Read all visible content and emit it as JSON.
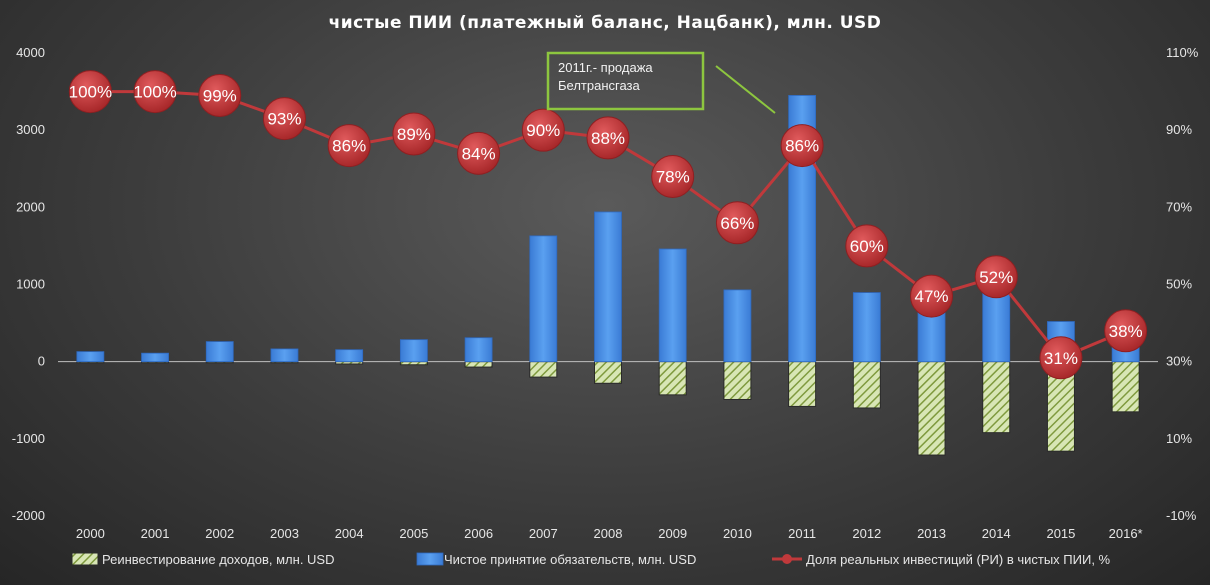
{
  "chart_data": {
    "type": "bar",
    "title": "чистые ПИИ (платежный баланс, Нацбанк), млн. USD",
    "categories": [
      "2000",
      "2001",
      "2002",
      "2003",
      "2004",
      "2005",
      "2006",
      "2007",
      "2008",
      "2009",
      "2010",
      "2011",
      "2012",
      "2013",
      "2014",
      "2015",
      "2016*"
    ],
    "ylim": [
      -2000,
      4000
    ],
    "yticks": [
      4000,
      3000,
      2000,
      1000,
      0,
      -1000,
      -2000
    ],
    "ylim_right": [
      -10,
      110
    ],
    "yticks_right": [
      "110%",
      "90%",
      "70%",
      "50%",
      "30%",
      "10%",
      "-10%"
    ],
    "yticks_right_values": [
      110,
      90,
      70,
      50,
      30,
      10,
      -10
    ],
    "series": [
      {
        "name": "Реинвестирование доходов, млн. USD",
        "kind": "bar-hatched",
        "color": "#9bbb59",
        "values": [
          -15,
          -15,
          -15,
          -15,
          -30,
          -40,
          -70,
          -200,
          -280,
          -430,
          -490,
          -580,
          -600,
          -1210,
          -920,
          -1160,
          -650
        ]
      },
      {
        "name": "Чистое принятие обязательств, млн. USD",
        "kind": "bar",
        "color": "#4a8fe0",
        "values": [
          130,
          110,
          260,
          165,
          155,
          285,
          310,
          1630,
          1940,
          1460,
          930,
          3450,
          895,
          1060,
          1000,
          520,
          290
        ]
      },
      {
        "name": "Доля реальных инвестиций (РИ) в чистых ПИИ, %",
        "kind": "line",
        "axis": "right",
        "color": "#c0393b",
        "values": [
          100,
          100,
          99,
          93,
          86,
          89,
          84,
          90,
          88,
          78,
          66,
          86,
          60,
          47,
          52,
          31,
          38
        ],
        "labels": [
          "100%",
          "100%",
          "99%",
          "93%",
          "86%",
          "89%",
          "84%",
          "90%",
          "88%",
          "78%",
          "66%",
          "86%",
          "60%",
          "47%",
          "52%",
          "31%",
          "38%"
        ]
      }
    ],
    "annotation": {
      "lines": [
        "2011г.- продажа",
        "Белтрансгаза"
      ],
      "color": "#8dc63f"
    },
    "grid": false,
    "legend_position": "bottom"
  }
}
